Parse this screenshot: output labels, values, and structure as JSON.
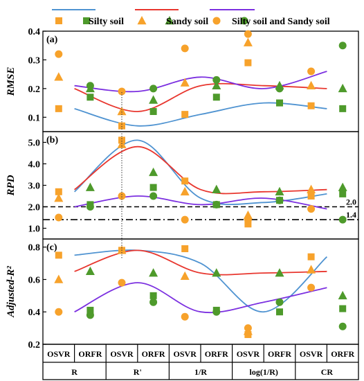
{
  "chart_data": {
    "type": "scatter",
    "colors": {
      "silty": "#4f93d1",
      "sandy": "#e8362e",
      "mixed": "#7b2fe0",
      "orange": "#f7a22b",
      "green": "#4e9a2b"
    },
    "legend": {
      "placement": "top",
      "entries": [
        {
          "key": "silty",
          "label": "Silty soil"
        },
        {
          "key": "sandy",
          "label": "Sandy soil"
        },
        {
          "key": "mixed",
          "label": "Silty soil and Sandy soil"
        }
      ]
    },
    "groups": [
      "R",
      "R'",
      "1/R",
      "log(1/R)",
      "CR"
    ],
    "models": [
      "OSVR",
      "ORFR",
      "OSVR",
      "ORFR",
      "OSVR",
      "ORFR",
      "OSVR",
      "ORFR",
      "OSVR",
      "ORFR"
    ],
    "panels": [
      {
        "tag": "(a)",
        "ylabel": "RMSE",
        "ylim": [
          0.05,
          0.4
        ],
        "yticks": [
          "0.1",
          "0.2",
          "0.3",
          "0.4"
        ],
        "ytick_values": [
          0.1,
          0.2,
          0.3,
          0.4
        ],
        "markers": {
          "silty": [
            0.13,
            0.17,
            0.07,
            0.12,
            0.11,
            0.17,
            0.29,
            0.15,
            0.14,
            0.13
          ],
          "sandy": [
            0.24,
            0.2,
            0.12,
            0.16,
            0.22,
            0.21,
            0.36,
            0.21,
            0.21,
            0.2
          ],
          "mixed": [
            0.32,
            0.21,
            0.19,
            0.2,
            0.34,
            0.23,
            0.39,
            0.2,
            0.26,
            0.35
          ]
        },
        "curves": {
          "silty": [
            0.13,
            0.07,
            0.11,
            0.15,
            0.13
          ],
          "sandy": [
            0.2,
            0.12,
            0.21,
            0.21,
            0.2
          ],
          "mixed": [
            0.21,
            0.19,
            0.24,
            0.2,
            0.26
          ]
        }
      },
      {
        "tag": "(b)",
        "ylabel": "RPD",
        "ylim": [
          0.5,
          5.5
        ],
        "yticks": [
          "1.0",
          "2.0",
          "3.0",
          "4.0",
          "5.0"
        ],
        "ytick_values": [
          1,
          2,
          3,
          4,
          5
        ],
        "ref_lines": [
          {
            "value": 2.0,
            "label": "2.0",
            "style": "dash"
          },
          {
            "value": 1.4,
            "label": "1.4",
            "style": "dashdot"
          }
        ],
        "markers": {
          "silty": [
            2.7,
            2.1,
            5.1,
            2.9,
            3.2,
            2.1,
            1.2,
            2.3,
            2.5,
            2.6
          ],
          "sandy": [
            2.4,
            2.9,
            4.9,
            3.6,
            2.7,
            2.8,
            1.6,
            2.7,
            2.8,
            2.9
          ],
          "mixed": [
            1.5,
            2.0,
            2.5,
            2.5,
            1.4,
            2.1,
            1.4,
            2.3,
            1.9,
            1.4
          ]
        },
        "curves": {
          "silty": [
            2.7,
            5.1,
            2.4,
            2.2,
            2.6
          ],
          "sandy": [
            2.8,
            4.8,
            2.8,
            2.7,
            2.8
          ],
          "mixed": [
            2.0,
            2.5,
            2.1,
            2.4,
            1.9
          ]
        }
      },
      {
        "tag": "(c)",
        "ylabel": "Adjusted-R²",
        "ylim": [
          0.2,
          0.85
        ],
        "yticks": [
          "0.2",
          "0.4",
          "0.6",
          "0.8"
        ],
        "ytick_values": [
          0.2,
          0.4,
          0.6,
          0.8
        ],
        "markers": {
          "silty": [
            0.75,
            0.41,
            0.78,
            0.5,
            0.79,
            0.41,
            0.26,
            0.4,
            0.74,
            0.42
          ],
          "sandy": [
            0.6,
            0.65,
            0.78,
            0.64,
            0.62,
            0.64,
            0.28,
            0.64,
            0.66,
            0.5
          ],
          "mixed": [
            0.4,
            0.38,
            0.58,
            0.46,
            0.37,
            0.4,
            0.3,
            0.46,
            0.55,
            0.31
          ]
        },
        "curves": {
          "silty": [
            0.75,
            0.78,
            0.7,
            0.4,
            0.74
          ],
          "sandy": [
            0.65,
            0.78,
            0.64,
            0.64,
            0.65
          ],
          "mixed": [
            0.4,
            0.58,
            0.4,
            0.46,
            0.55
          ]
        }
      }
    ]
  }
}
